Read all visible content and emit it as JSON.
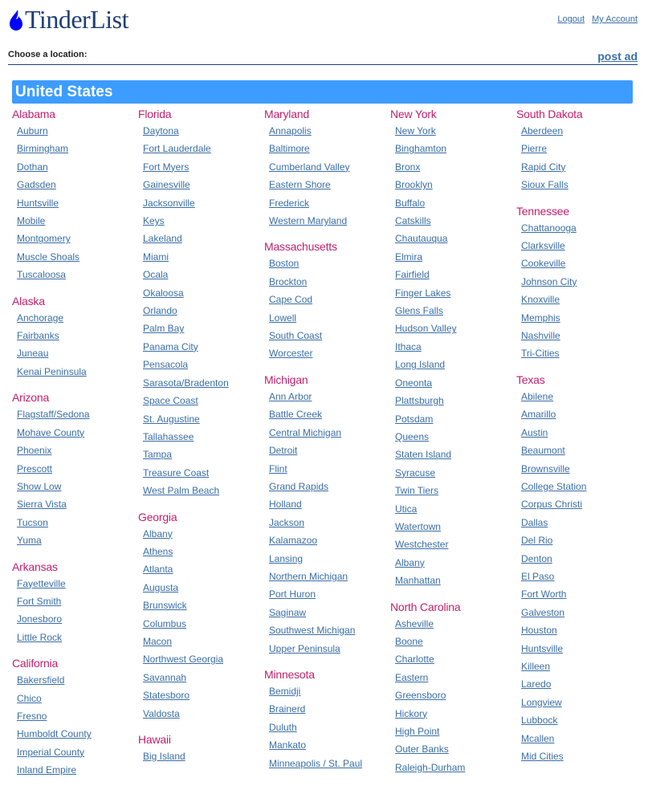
{
  "header": {
    "logo_text": "TinderList",
    "logout": "Logout",
    "my_account": "My Account",
    "choose_location": "Choose a location:",
    "post_ad": "post ad"
  },
  "colors": {
    "country_bar": "#3d9cff",
    "state": "#c21e6d",
    "link": "#3a6ea5",
    "logo": "#1f3f73",
    "logo_icon": "#0000ff"
  },
  "country": "United States",
  "columns": [
    [
      {
        "state": "Alabama",
        "cities": [
          "Auburn",
          "Birmingham",
          "Dothan",
          "Gadsden",
          "Huntsville",
          "Mobile",
          "Montgomery",
          "Muscle Shoals",
          "Tuscaloosa"
        ]
      },
      {
        "state": "Alaska",
        "cities": [
          "Anchorage",
          "Fairbanks",
          "Juneau",
          "Kenai Peninsula"
        ]
      },
      {
        "state": "Arizona",
        "cities": [
          "Flagstaff/Sedona",
          "Mohave County",
          "Phoenix",
          "Prescott",
          "Show Low",
          "Sierra Vista",
          "Tucson",
          "Yuma"
        ]
      },
      {
        "state": "Arkansas",
        "cities": [
          "Fayetteville",
          "Fort Smith",
          "Jonesboro",
          "Little Rock"
        ]
      },
      {
        "state": "California",
        "cities": [
          "Bakersfield",
          "Chico",
          "Fresno",
          "Humboldt County",
          "Imperial County",
          "Inland Empire"
        ]
      }
    ],
    [
      {
        "state": "Florida",
        "cities": [
          "Daytona",
          "Fort Lauderdale",
          "Fort Myers",
          "Gainesville",
          "Jacksonville",
          "Keys",
          "Lakeland",
          "Miami",
          "Ocala",
          "Okaloosa",
          "Orlando",
          "Palm Bay",
          "Panama City",
          "Pensacola",
          "Sarasota/Bradenton",
          "Space Coast",
          "St. Augustine",
          "Tallahassee",
          "Tampa",
          "Treasure Coast",
          "West Palm Beach"
        ]
      },
      {
        "state": "Georgia",
        "cities": [
          "Albany",
          "Athens",
          "Atlanta",
          "Augusta",
          "Brunswick",
          "Columbus",
          "Macon",
          "Northwest Georgia",
          "Savannah",
          "Statesboro",
          "Valdosta"
        ]
      },
      {
        "state": "Hawaii",
        "cities": [
          "Big Island"
        ]
      }
    ],
    [
      {
        "state": "Maryland",
        "cities": [
          "Annapolis",
          "Baltimore",
          "Cumberland Valley",
          "Eastern Shore",
          "Frederick",
          "Western Maryland"
        ]
      },
      {
        "state": "Massachusetts",
        "cities": [
          "Boston",
          "Brockton",
          "Cape Cod",
          "Lowell",
          "South Coast",
          "Worcester"
        ]
      },
      {
        "state": "Michigan",
        "cities": [
          "Ann Arbor",
          "Battle Creek",
          "Central Michigan",
          "Detroit",
          "Flint",
          "Grand Rapids",
          "Holland",
          "Jackson",
          "Kalamazoo",
          "Lansing",
          "Northern Michigan",
          "Port Huron",
          "Saginaw",
          "Southwest Michigan",
          "Upper Peninsula"
        ]
      },
      {
        "state": "Minnesota",
        "cities": [
          "Bemidji",
          "Brainerd",
          "Duluth",
          "Mankato",
          "Minneapolis / St. Paul"
        ]
      }
    ],
    [
      {
        "state": "New York",
        "cities": [
          "New York",
          "Binghamton",
          "Bronx",
          "Brooklyn",
          "Buffalo",
          "Catskills",
          "Chautauqua",
          "Elmira",
          "Fairfield",
          "Finger Lakes",
          "Glens Falls",
          "Hudson Valley",
          "Ithaca",
          "Long Island",
          "Oneonta",
          "Plattsburgh",
          "Potsdam",
          "Queens",
          "Staten Island",
          "Syracuse",
          "Twin Tiers",
          "Utica",
          "Watertown",
          "Westchester",
          "Albany",
          "Manhattan"
        ]
      },
      {
        "state": "North Carolina",
        "cities": [
          "Asheville",
          "Boone",
          "Charlotte",
          "Eastern",
          "Greensboro",
          "Hickory",
          "High Point",
          "Outer Banks",
          "Raleigh-Durham"
        ]
      }
    ],
    [
      {
        "state": "South Dakota",
        "cities": [
          "Aberdeen",
          "Pierre",
          "Rapid City",
          "Sioux Falls"
        ]
      },
      {
        "state": "Tennessee",
        "cities": [
          "Chattanooga",
          "Clarksville",
          "Cookeville",
          "Johnson City",
          "Knoxville",
          "Memphis",
          "Nashville",
          "Tri-Cities"
        ]
      },
      {
        "state": "Texas",
        "cities": [
          "Abilene",
          "Amarillo",
          "Austin",
          "Beaumont",
          "Brownsville",
          "College Station",
          "Corpus Christi",
          "Dallas",
          "Del Rio",
          "Denton",
          "El Paso",
          "Fort Worth",
          "Galveston",
          "Houston",
          "Huntsville",
          "Killeen",
          "Laredo",
          "Longview",
          "Lubbock",
          "Mcallen",
          "Mid Cities"
        ]
      }
    ]
  ]
}
